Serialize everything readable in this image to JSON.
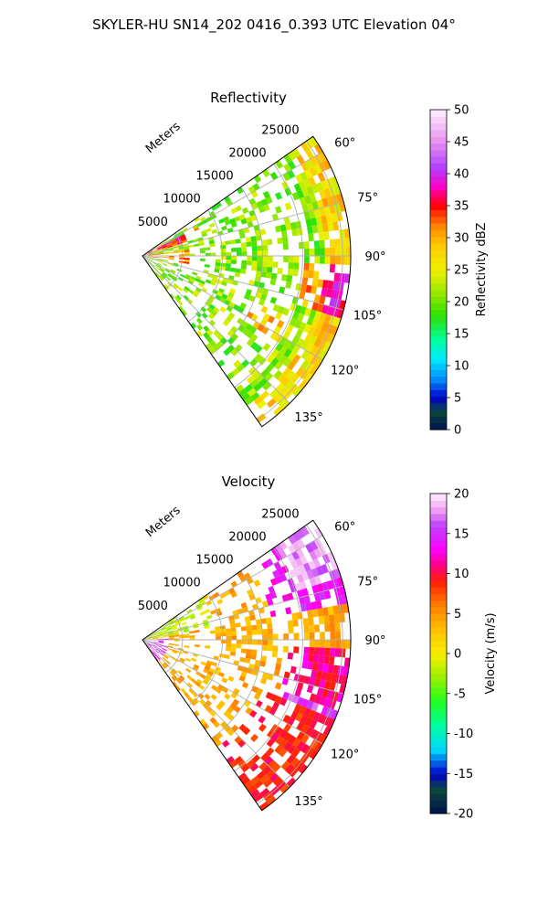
{
  "figure": {
    "suptitle": "SKYLER-HU  SN14_202  0416_0.393 UTC Elevation 04°"
  },
  "chart_data": [
    {
      "type": "heatmap",
      "subtype": "polar-sector",
      "title": "Reflectivity",
      "range_label": "Meters",
      "range_ticks": [
        5000,
        10000,
        15000,
        20000,
        25000
      ],
      "range_max": 26000,
      "azimuth_ticks": [
        "60°",
        "75°",
        "90°",
        "105°",
        "120°",
        "135°"
      ],
      "azimuth_range_deg": [
        55,
        145
      ],
      "colorbar": {
        "label": "Reflectivity dBZ",
        "min": 0,
        "max": 50,
        "ticks": [
          0,
          5,
          10,
          15,
          20,
          25,
          30,
          35,
          40,
          45,
          50
        ],
        "stops": [
          [
            0,
            "#001050"
          ],
          [
            3,
            "#0a4a3a"
          ],
          [
            5,
            "#0000cc"
          ],
          [
            8,
            "#0090ff"
          ],
          [
            11,
            "#00e8ff"
          ],
          [
            14,
            "#00ffa0"
          ],
          [
            18,
            "#30e000"
          ],
          [
            21,
            "#8fe800"
          ],
          [
            25,
            "#f0f000"
          ],
          [
            29,
            "#ffc800"
          ],
          [
            32,
            "#ff8000"
          ],
          [
            35,
            "#ff0000"
          ],
          [
            38,
            "#ff00c8"
          ],
          [
            41,
            "#b040ff"
          ],
          [
            45,
            "#e890f0"
          ],
          [
            50,
            "#fff0ff"
          ]
        ]
      }
    },
    {
      "type": "heatmap",
      "subtype": "polar-sector",
      "title": "Velocity",
      "range_label": "Meters",
      "range_ticks": [
        5000,
        10000,
        15000,
        20000,
        25000
      ],
      "range_max": 26000,
      "azimuth_ticks": [
        "60°",
        "75°",
        "90°",
        "105°",
        "120°",
        "135°"
      ],
      "azimuth_range_deg": [
        55,
        145
      ],
      "colorbar": {
        "label": "Velocity (m/s)",
        "min": -20,
        "max": 20,
        "ticks": [
          -20,
          -15,
          -10,
          -5,
          0,
          5,
          10,
          15,
          20
        ],
        "stops": [
          [
            -20,
            "#001050"
          ],
          [
            -17,
            "#0a4a3a"
          ],
          [
            -15,
            "#0000cc"
          ],
          [
            -12,
            "#00d8ff"
          ],
          [
            -9,
            "#00ffa0"
          ],
          [
            -6,
            "#20ff20"
          ],
          [
            -3,
            "#98f000"
          ],
          [
            0,
            "#f8f000"
          ],
          [
            3,
            "#ffc000"
          ],
          [
            6,
            "#ff8000"
          ],
          [
            9,
            "#ff2000"
          ],
          [
            11,
            "#ff0080"
          ],
          [
            13,
            "#ff00ff"
          ],
          [
            16,
            "#c040ff"
          ],
          [
            18,
            "#f0a0f0"
          ],
          [
            20,
            "#fff0ff"
          ]
        ]
      }
    }
  ]
}
